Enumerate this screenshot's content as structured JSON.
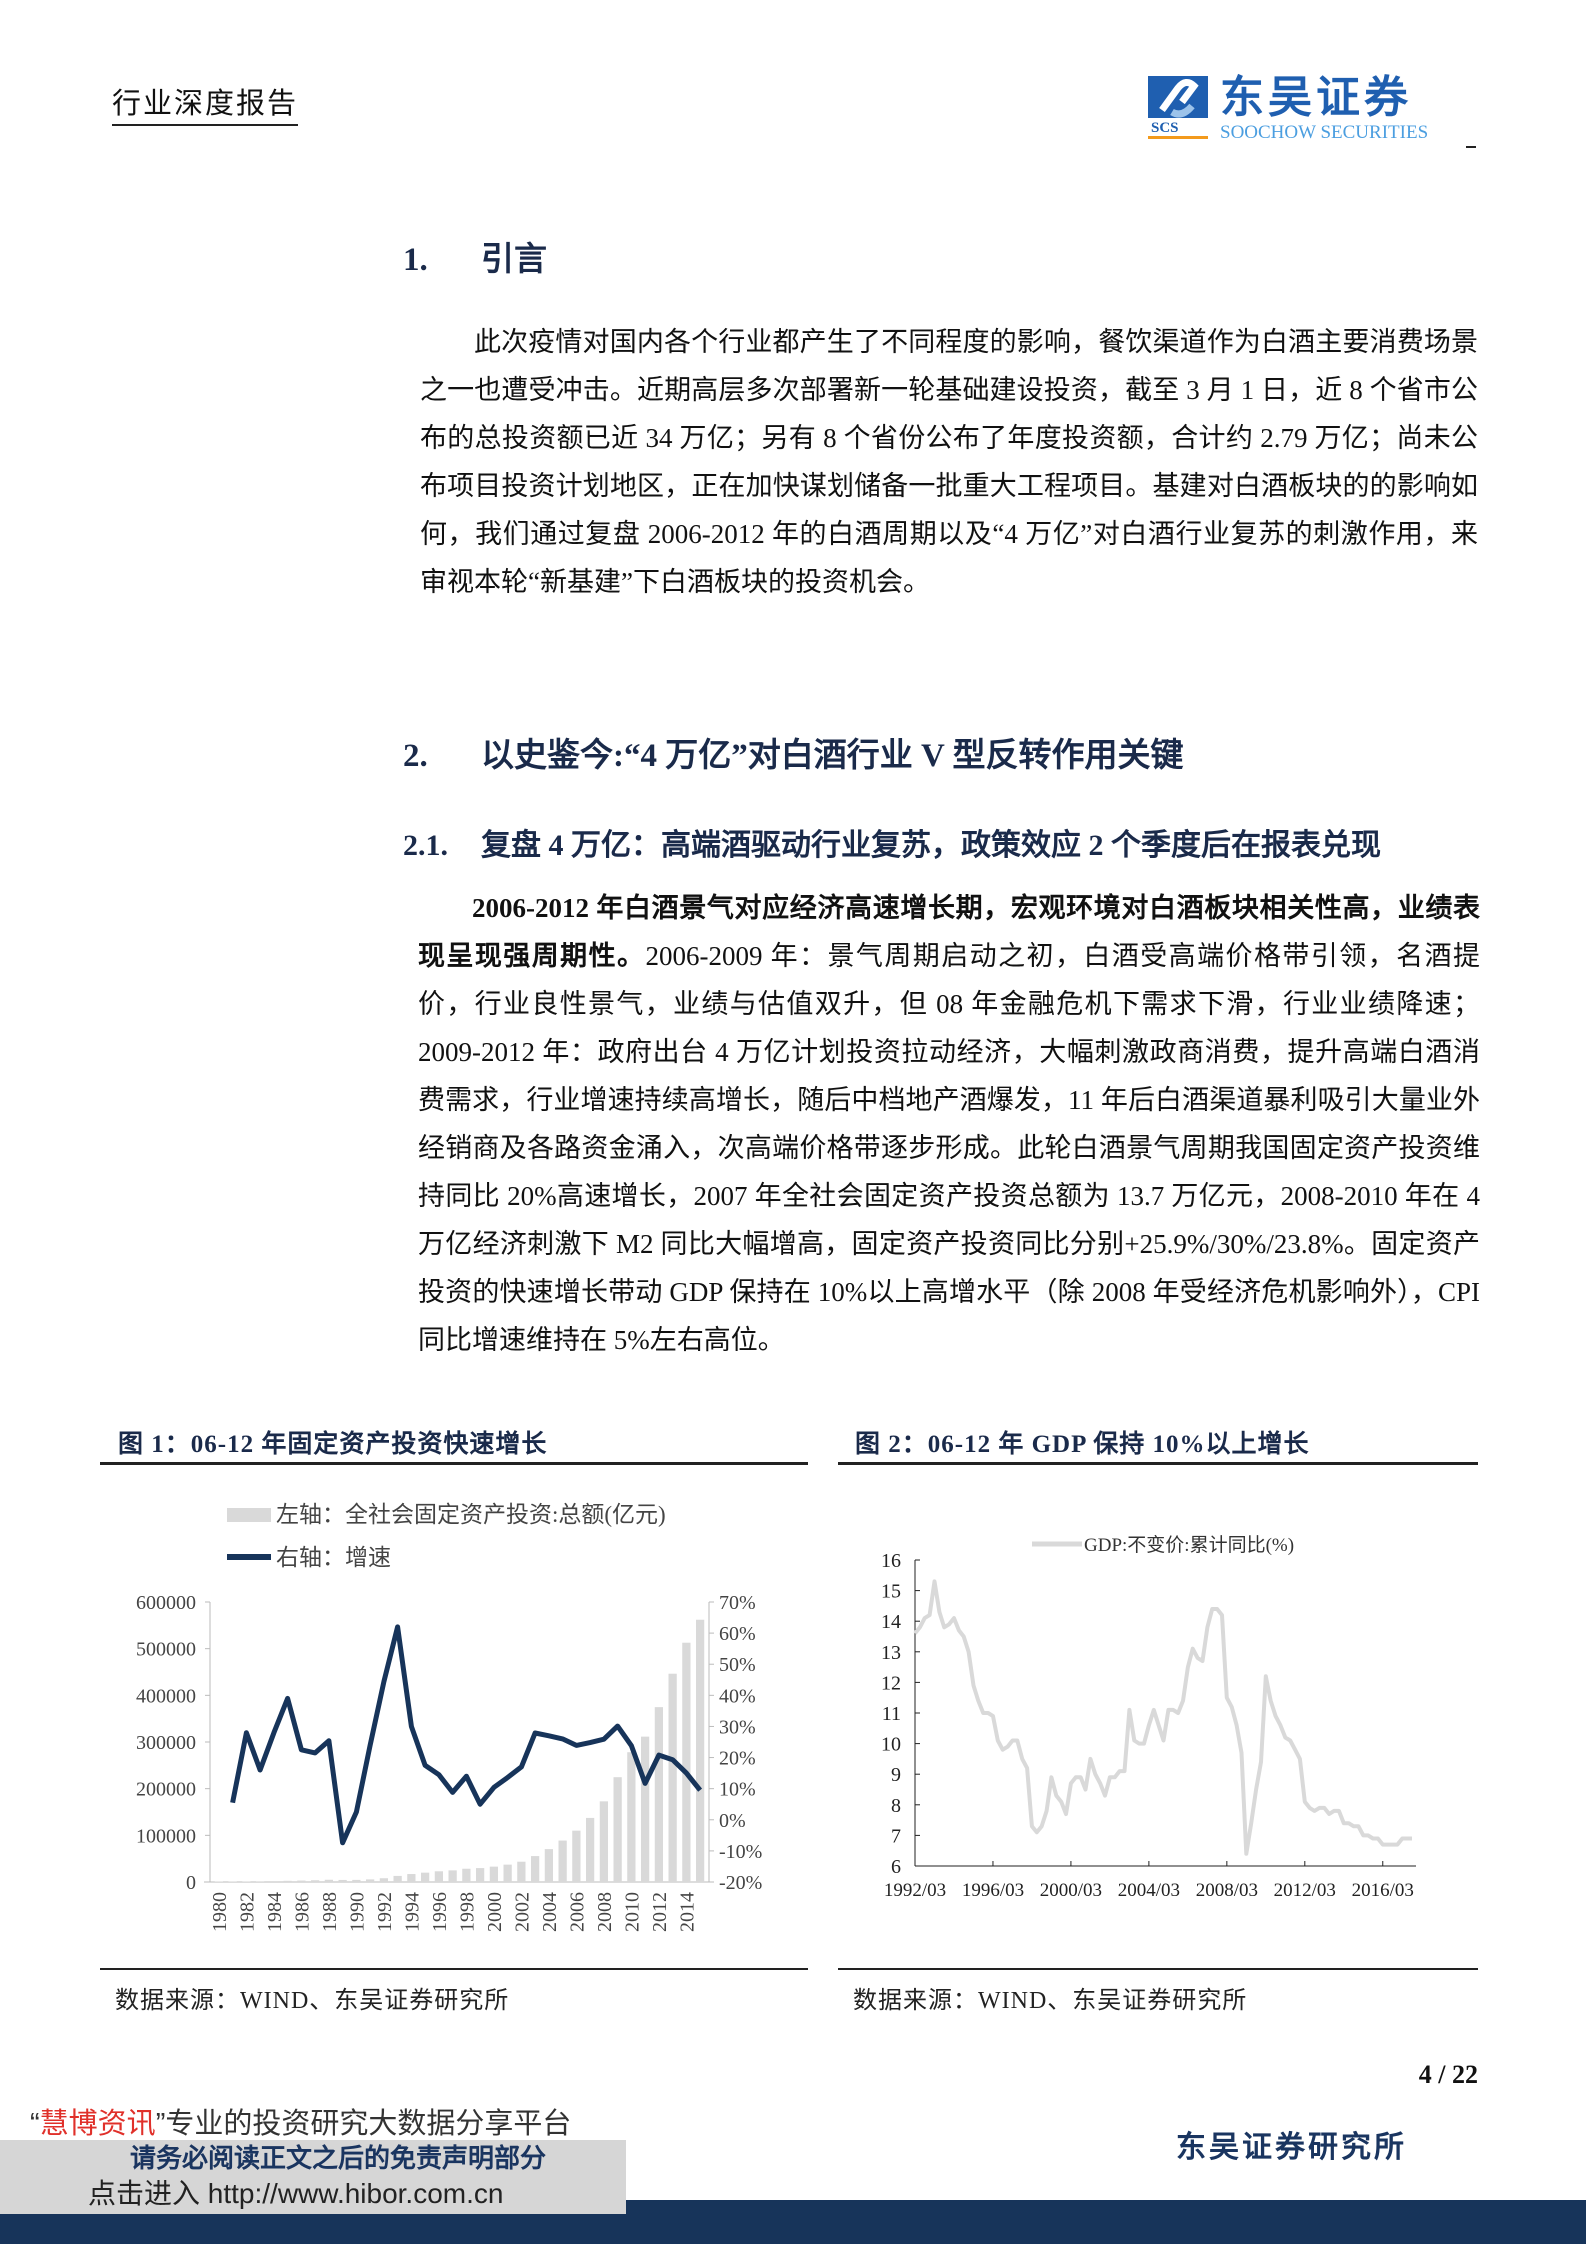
{
  "header": {
    "title": "行业深度报告",
    "logo_cn": "东吴证券",
    "logo_en": "SOOCHOW SECURITIES",
    "logo_mark": "SCS"
  },
  "section1": {
    "num": "1.",
    "title": "引言",
    "paragraph": "此次疫情对国内各个行业都产生了不同程度的影响，餐饮渠道作为白酒主要消费场景之一也遭受冲击。近期高层多次部署新一轮基础建设投资，截至 3 月 1 日，近 8 个省市公布的总投资额已近 34 万亿；另有 8 个省份公布了年度投资额，合计约 2.79 万亿；尚未公布项目投资计划地区，正在加快谋划储备一批重大工程项目。基建对白酒板块的的影响如何，我们通过复盘 2006-2012 年的白酒周期以及“4 万亿”对白酒行业复苏的刺激作用，来审视本轮“新基建”下白酒板块的投资机会。"
  },
  "section2": {
    "num": "2.",
    "title": "以史鉴今:“4 万亿”对白酒行业 V 型反转作用关键"
  },
  "section21": {
    "num": "2.1.",
    "title": "复盘 4 万亿：高端酒驱动行业复苏，政策效应 2 个季度后在报表兑现",
    "bold": "2006-2012 年白酒景气对应经济高速增长期，宏观环境对白酒板块相关性高，业绩表现呈现强周期性。",
    "body": "2006-2009 年：景气周期启动之初，白酒受高端价格带引领，名酒提价，行业良性景气，业绩与估值双升，但 08 年金融危机下需求下滑，行业业绩降速；2009-2012 年：政府出台 4 万亿计划投资拉动经济，大幅刺激政商消费，提升高端白酒消费需求，行业增速持续高增长，随后中档地产酒爆发，11 年后白酒渠道暴利吸引大量业外经销商及各路资金涌入，次高端价格带逐步形成。此轮白酒景气周期我国固定资产投资维持同比 20%高速增长，2007 年全社会固定资产投资总额为 13.7 万亿元，2008-2010 年在 4 万亿经济刺激下 M2 同比大幅增高，固定资产投资同比分别+25.9%/30%/23.8%。固定资产投资的快速增长带动 GDP 保持在 10%以上高增水平（除 2008 年受经济危机影响外），CPI 同比增速维持在 5%左右高位。"
  },
  "figure1": {
    "title": "图 1：06-12 年固定资产投资快速增长",
    "source": "数据来源：WIND、东吴证券研究所"
  },
  "figure2": {
    "title": "图 2：06-12 年 GDP 保持 10%以上增长",
    "source": "数据来源：WIND、东吴证券研究所"
  },
  "chart_data": [
    {
      "type": "bar+line",
      "legend": [
        "左轴：全社会固定资产投资:总额(亿元)",
        "右轴：增速"
      ],
      "legend_placement": "top-left",
      "colors": {
        "bar": "#d9d9d9",
        "line": "#17345a"
      },
      "x": [
        1980,
        1981,
        1982,
        1983,
        1984,
        1985,
        1986,
        1987,
        1988,
        1989,
        1990,
        1991,
        1992,
        1993,
        1994,
        1995,
        1996,
        1997,
        1998,
        1999,
        2000,
        2001,
        2002,
        2003,
        2004,
        2005,
        2006,
        2007,
        2008,
        2009,
        2010,
        2011,
        2012,
        2013,
        2014,
        2015
      ],
      "x_tick_labels": [
        "1980",
        "1982",
        "1984",
        "1986",
        "1988",
        "1990",
        "1992",
        "1994",
        "1996",
        "1998",
        "2000",
        "2002",
        "2004",
        "2006",
        "2008",
        "2010",
        "2012",
        "2014"
      ],
      "bar_values": [
        911,
        961,
        1230,
        1430,
        1833,
        2543,
        3121,
        3792,
        4754,
        4410,
        4517,
        5595,
        8080,
        13072,
        17042,
        20019,
        22914,
        24941,
        28406,
        29855,
        32918,
        37214,
        43500,
        55567,
        70477,
        88774,
        109998,
        137324,
        172828,
        224599,
        278122,
        311485,
        374695,
        446294,
        512761,
        561999
      ],
      "line_values": [
        null,
        5.5,
        28,
        16,
        28,
        39,
        22.5,
        21.5,
        25.4,
        -7.4,
        2.5,
        23.9,
        44.4,
        62,
        30,
        17.5,
        14.5,
        8.8,
        14,
        5,
        10.4,
        13.6,
        17,
        27.9,
        27,
        26,
        23.9,
        24.8,
        25.9,
        30.1,
        23.8,
        11.7,
        20.8,
        19.3,
        15,
        9.5
      ],
      "y_left": {
        "range": [
          0,
          600000
        ],
        "ticks": [
          "600000",
          "500000",
          "400000",
          "300000",
          "200000",
          "100000",
          "0"
        ]
      },
      "y_right": {
        "range": [
          -20,
          70
        ],
        "unit": "%",
        "ticks": [
          "70%",
          "60%",
          "50%",
          "40%",
          "30%",
          "20%",
          "10%",
          "0%",
          "-10%",
          "-20%"
        ]
      }
    },
    {
      "type": "line",
      "legend": [
        "GDP:不变价:累计同比(%)"
      ],
      "legend_placement": "top-center",
      "colors": {
        "line": "#d9d9d9"
      },
      "x_start": "1992/03",
      "x_frequency": "quarterly",
      "x_tick_labels": [
        "1992/03",
        "1996/03",
        "2000/03",
        "2004/03",
        "2008/03",
        "2012/03",
        "2016/03"
      ],
      "values": [
        13.6,
        13.8,
        14.1,
        14.2,
        15.3,
        14.3,
        13.8,
        13.9,
        14.1,
        13.7,
        13.5,
        13.0,
        11.9,
        11.4,
        11.0,
        11.0,
        10.9,
        10.1,
        9.8,
        9.9,
        10.1,
        10.1,
        9.5,
        9.2,
        7.3,
        7.1,
        7.3,
        7.8,
        8.9,
        8.3,
        8.1,
        7.7,
        8.7,
        8.9,
        8.9,
        8.5,
        9.5,
        9.0,
        8.7,
        8.3,
        8.9,
        8.9,
        9.1,
        9.1,
        11.1,
        10.1,
        10.0,
        10.0,
        10.6,
        11.1,
        10.6,
        10.1,
        11.1,
        11.1,
        11.0,
        11.4,
        12.5,
        13.1,
        12.8,
        12.7,
        13.8,
        14.4,
        14.4,
        14.2,
        11.5,
        11.2,
        10.6,
        9.7,
        6.4,
        7.4,
        8.5,
        9.4,
        12.2,
        11.4,
        10.9,
        10.6,
        10.2,
        10.1,
        9.8,
        9.5,
        8.1,
        7.9,
        7.8,
        7.9,
        7.9,
        7.7,
        7.8,
        7.8,
        7.4,
        7.4,
        7.3,
        7.3,
        7.0,
        7.0,
        6.9,
        6.9,
        6.7,
        6.7,
        6.7,
        6.7,
        6.9,
        6.9,
        6.9
      ],
      "y": {
        "range": [
          6,
          16
        ],
        "ticks": [
          "16",
          "15",
          "14",
          "13",
          "12",
          "11",
          "10",
          "9",
          "8",
          "7",
          "6"
        ]
      }
    }
  ],
  "footer": {
    "page": "4 / 22",
    "institute": "东吴证券研究所",
    "watermark_brand": "慧博资讯",
    "watermark_q1": "“",
    "watermark_q2": "”",
    "watermark_text": "专业的投资研究大数据分享平台",
    "disclaimer": "请务必阅读正文之后的免责声明部分",
    "link": "点击进入 http://www.hibor.com.cn"
  }
}
